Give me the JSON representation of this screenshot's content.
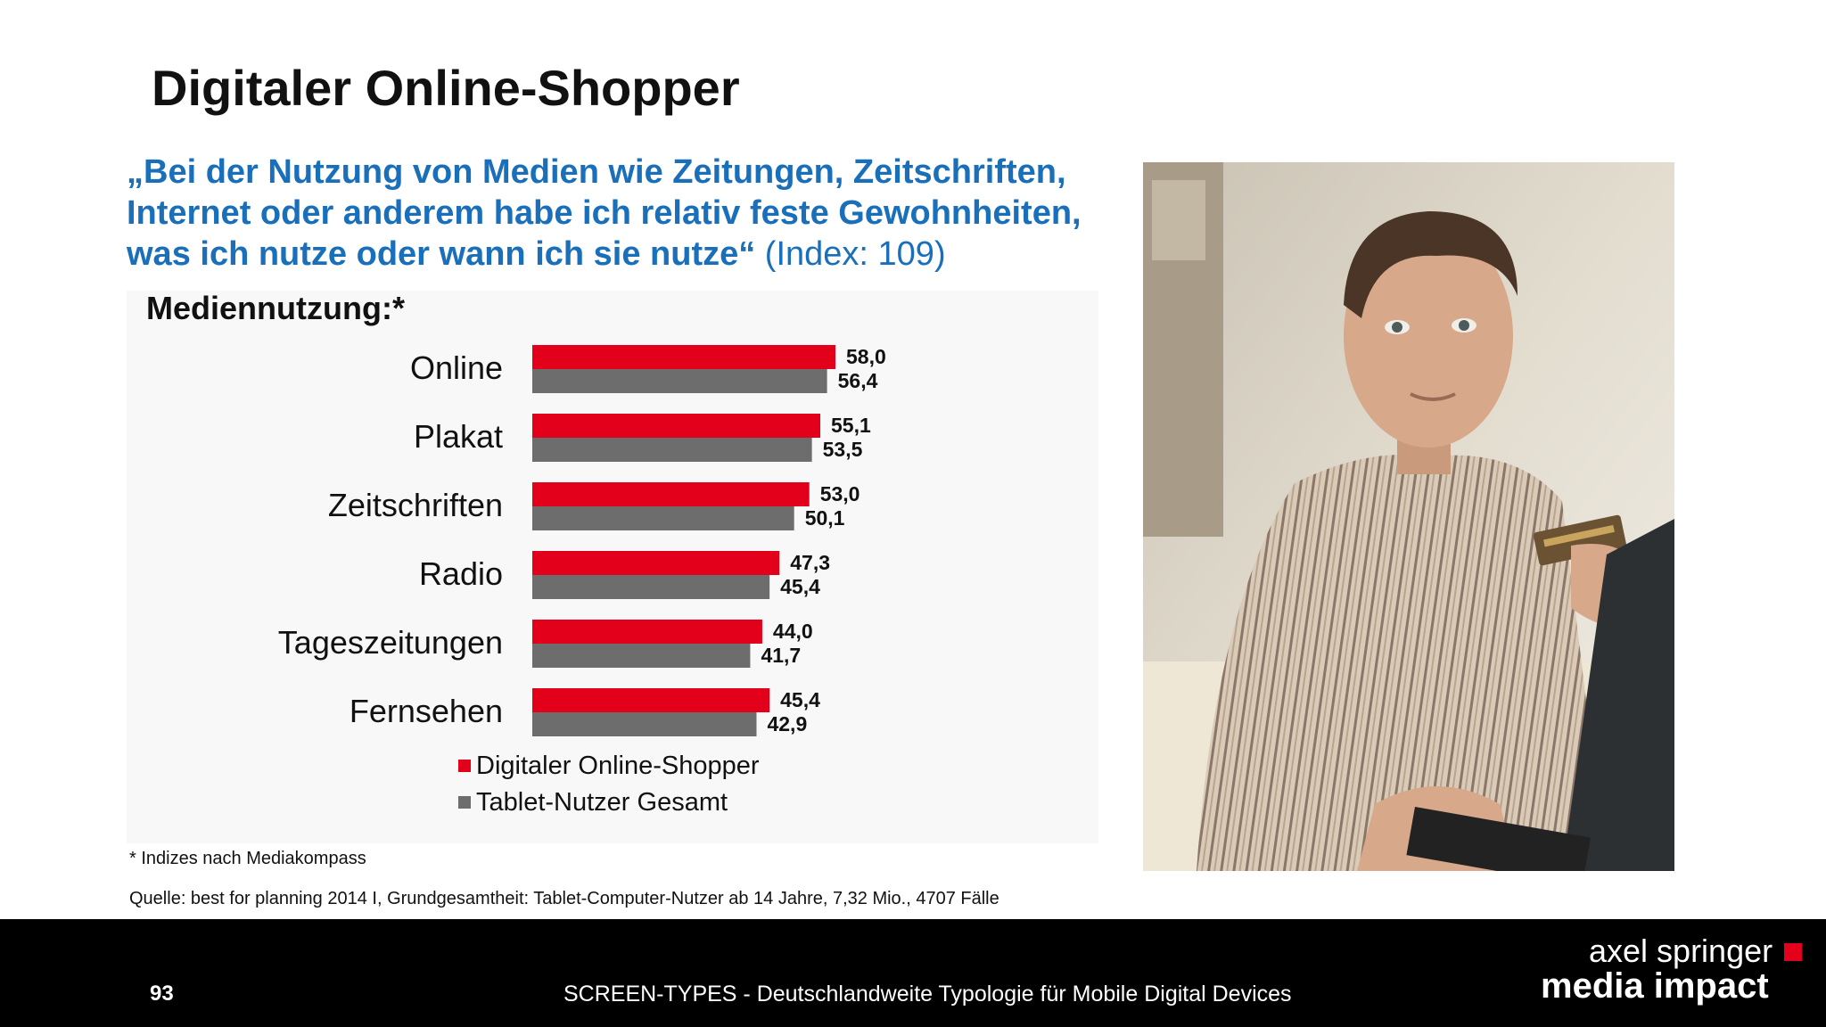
{
  "title": "Digitaler Online-Shopper",
  "quote": {
    "text": "„Bei der Nutzung von Medien wie Zeitungen, Zeitschriften, Internet oder anderem habe ich relativ feste Gewohnheiten, was ich nutze oder wann ich sie nutze“",
    "index": " (Index: 109)"
  },
  "chart_data": {
    "type": "bar",
    "orientation": "horizontal",
    "title": "Mediennutzung:*",
    "categories": [
      "Online",
      "Plakat",
      "Zeitschriften",
      "Radio",
      "Tageszeitungen",
      "Fernsehen"
    ],
    "series": [
      {
        "name": "Digitaler Online-Shopper",
        "color": "#e2001a",
        "values": [
          58.0,
          55.1,
          53.0,
          47.3,
          44.0,
          45.4
        ],
        "labels": [
          "58,0",
          "55,1",
          "53,0",
          "47,3",
          "44,0",
          "45,4"
        ]
      },
      {
        "name": "Tablet-Nutzer Gesamt",
        "color": "#6d6d6d",
        "values": [
          56.4,
          53.5,
          50.1,
          45.4,
          41.7,
          42.9
        ],
        "labels": [
          "56,4",
          "53,5",
          "50,1",
          "45,4",
          "41,7",
          "42,9"
        ]
      }
    ],
    "xlim": [
      0,
      60
    ],
    "grid": false,
    "legend": "bottom"
  },
  "note": "* Indizes nach Mediakompass",
  "source": "Quelle: best for planning 2014 I, Grundgesamtheit: Tablet-Computer-Nutzer ab 14 Jahre, 7,32 Mio., 4707 Fälle",
  "footer": {
    "page_number": "93",
    "text": "SCREEN-TYPES - Deutschlandweite Typologie für Mobile Digital Devices",
    "brand_line1": "axel springer",
    "brand_line2": "media impact"
  },
  "photo": {
    "icon": "man-with-credit-card-photo"
  }
}
